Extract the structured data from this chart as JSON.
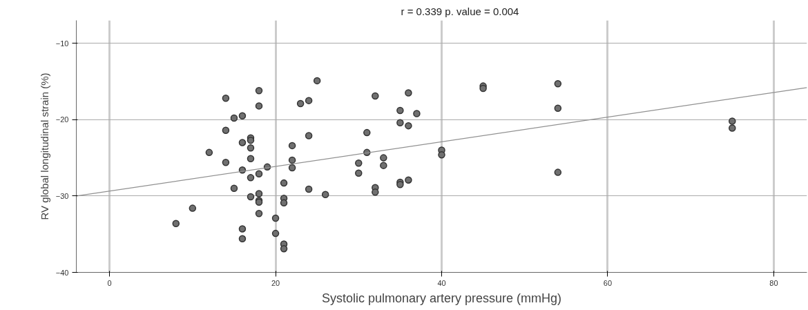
{
  "chart_data": {
    "type": "scatter",
    "xlabel": "Systolic pulmonary artery pressure (mmHg)",
    "ylabel": "RV global longitudinal strain (%)",
    "annotations": [
      "r = 0.339     p. value = 0.004"
    ],
    "xlim": [
      -4,
      84
    ],
    "ylim": [
      -40,
      -7
    ],
    "xticks": [
      0,
      20,
      40,
      60,
      80
    ],
    "yticks": [
      -40,
      -30,
      -20,
      -10
    ],
    "grid": true,
    "series": [
      {
        "marker": "circle",
        "color": "#707070",
        "x": [
          14,
          18,
          25,
          18,
          16,
          15,
          23,
          24,
          14,
          17,
          17,
          16,
          22,
          17,
          12,
          24,
          17,
          22,
          14,
          19,
          16,
          22,
          17,
          18,
          21,
          15,
          24,
          26,
          17,
          18,
          18,
          18,
          21,
          21,
          18,
          10,
          8,
          20,
          16,
          20,
          16,
          21,
          21,
          32,
          36,
          35,
          37,
          35,
          36,
          31,
          31,
          33,
          30,
          33,
          30,
          35,
          35,
          36,
          32,
          32,
          40,
          40,
          45,
          45,
          54,
          54,
          54,
          75,
          75
        ],
        "values": [
          -17.2,
          -16.2,
          -14.9,
          -18.2,
          -19.5,
          -19.8,
          -17.9,
          -17.5,
          -21.4,
          -22.4,
          -22.7,
          -23,
          -23.4,
          -23.7,
          -24.3,
          -22.1,
          -25.1,
          -25.3,
          -25.6,
          -26.2,
          -26.6,
          -26.3,
          -27.6,
          -27.1,
          -28.3,
          -29,
          -29.1,
          -29.8,
          -30.1,
          -29.7,
          -30.6,
          -30.8,
          -30.3,
          -30.9,
          -32.3,
          -31.6,
          -33.6,
          -32.9,
          -34.3,
          -34.9,
          -35.6,
          -36.3,
          -36.9,
          -16.9,
          -16.5,
          -18.8,
          -19.2,
          -20.4,
          -20.8,
          -21.7,
          -24.3,
          -25,
          -25.7,
          -26,
          -27,
          -28.2,
          -28.5,
          -27.9,
          -28.9,
          -29.5,
          -24,
          -24.6,
          -15.6,
          -15.9,
          -15.3,
          -18.5,
          -26.9,
          -20.2,
          -21.1
        ]
      },
      {
        "type": "line",
        "color": "#909090",
        "x": [
          -4,
          84
        ],
        "values": [
          -30.0,
          -15.8
        ]
      }
    ]
  }
}
